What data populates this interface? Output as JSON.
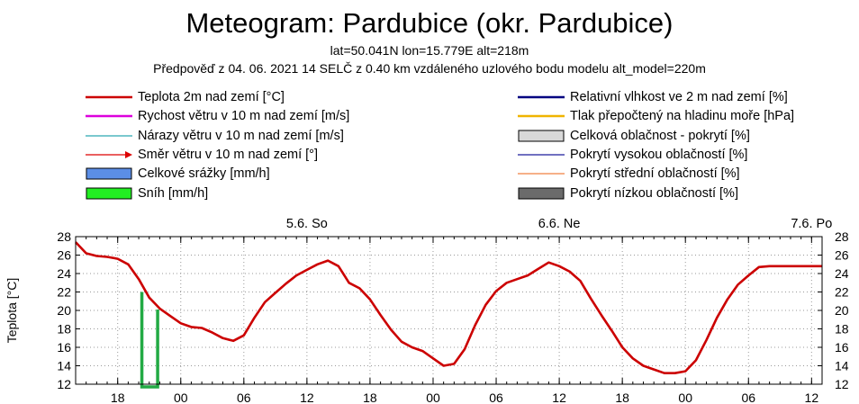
{
  "title": "Meteogram: Pardubice (okr. Pardubice)",
  "subtitle_location": "lat=50.041N lon=15.779E alt=218m",
  "subtitle_forecast": "Předpověď z 04. 06. 2021 14 SELČ z 0.40 km vzdáleného uzlového bodu modelu alt_model=220m",
  "legend": {
    "left": [
      {
        "label": "Teplota 2m nad zemí [°C]",
        "symbol": "line",
        "color": "#cc0000"
      },
      {
        "label": "Rychost větru v 10 m nad zemí [m/s]",
        "symbol": "line",
        "color": "#dd00dd"
      },
      {
        "label": "Nárazy větru v 10 m nad zemí [m/s]",
        "symbol": "thin-line",
        "color": "#2aa6b0"
      },
      {
        "label": "Směr větru v 10 m nad zemí [°]",
        "symbol": "arrow",
        "color": "#dd0000"
      },
      {
        "label": "Celkové srážky [mm/h]",
        "symbol": "box",
        "color": "#5b8ee6"
      },
      {
        "label": "Sníh [mm/h]",
        "symbol": "box",
        "color": "#22ee22"
      }
    ],
    "right": [
      {
        "label": "Relativní vlhkost ve 2 m nad zemí [%]",
        "symbol": "line",
        "color": "#000080"
      },
      {
        "label": "Tlak přepočtený na hladinu moře [hPa]",
        "symbol": "line",
        "color": "#f0b400"
      },
      {
        "label": "Celková oblačnost - pokrytí [%]",
        "symbol": "box",
        "color": "#d9d9d9"
      },
      {
        "label": "Pokrytí vysokou oblačností [%]",
        "symbol": "thin-line",
        "color": "#1c1c9c"
      },
      {
        "label": "Pokrytí střední oblačností [%]",
        "symbol": "thin-line",
        "color": "#f08040"
      },
      {
        "label": "Pokrytí nízkou oblačností [%]",
        "symbol": "box",
        "color": "#6b6b6b"
      }
    ]
  },
  "chart_data": {
    "type": "line",
    "ylabel": "Teplota [°C]",
    "ylim": [
      12,
      28
    ],
    "yticks": [
      12,
      14,
      16,
      18,
      20,
      22,
      24,
      26,
      28
    ],
    "x_unit": "hours from 2021-06-04 14:00",
    "xlim": [
      0,
      71
    ],
    "xtick_labels": [
      "18",
      "00",
      "06",
      "12",
      "18",
      "00",
      "06",
      "12",
      "18",
      "00",
      "06",
      "12"
    ],
    "xtick_hours": [
      4,
      10,
      16,
      22,
      28,
      34,
      40,
      46,
      52,
      58,
      64,
      70
    ],
    "day_labels": [
      {
        "label": "5.6. So",
        "hour": 22
      },
      {
        "label": "6.6. Ne",
        "hour": 46
      },
      {
        "label": "7.6. Po",
        "hour": 70
      }
    ],
    "grid": true,
    "series": [
      {
        "name": "Teplota 2m nad zemí [°C]",
        "color": "#cc0000",
        "x": [
          0,
          1,
          2,
          3,
          4,
          5,
          6,
          7,
          8,
          9,
          10,
          11,
          12,
          13,
          14,
          15,
          16,
          17,
          18,
          19,
          20,
          21,
          22,
          23,
          24,
          25,
          26,
          27,
          28,
          29,
          30,
          31,
          32,
          33,
          34,
          35,
          36,
          37,
          38,
          39,
          40,
          41,
          42,
          43,
          44,
          45,
          46,
          47,
          48,
          49,
          50,
          51,
          52,
          53,
          54,
          55,
          56,
          57,
          58,
          59,
          60,
          61,
          62,
          63,
          64,
          65,
          66,
          67,
          68,
          69,
          70,
          71
        ],
        "y": [
          27.4,
          26.2,
          25.9,
          25.8,
          25.6,
          25.0,
          23.4,
          21.4,
          20.2,
          19.4,
          18.6,
          18.2,
          18.1,
          17.6,
          17.0,
          16.7,
          17.3,
          19.2,
          20.9,
          21.9,
          22.9,
          23.8,
          24.4,
          25.0,
          25.4,
          24.8,
          23.0,
          22.4,
          21.2,
          19.5,
          17.9,
          16.6,
          16.0,
          15.6,
          14.8,
          14.0,
          14.2,
          15.8,
          18.4,
          20.6,
          22.1,
          23.0,
          23.4,
          23.8,
          24.5,
          25.2,
          24.8,
          24.2,
          23.2,
          21.3,
          19.5,
          17.8,
          16.0,
          14.8,
          14.0,
          13.6,
          13.2,
          13.2,
          13.4,
          14.6,
          16.8,
          19.2,
          21.2,
          22.8,
          23.8,
          24.7,
          24.8,
          24.8,
          24.8,
          24.8,
          24.8,
          24.8
        ]
      }
    ],
    "snow": {
      "start_hour": 6.3,
      "end_hour": 7.8,
      "value_start": 22.0,
      "value_end": 20.1,
      "color": "#22aa44"
    }
  }
}
